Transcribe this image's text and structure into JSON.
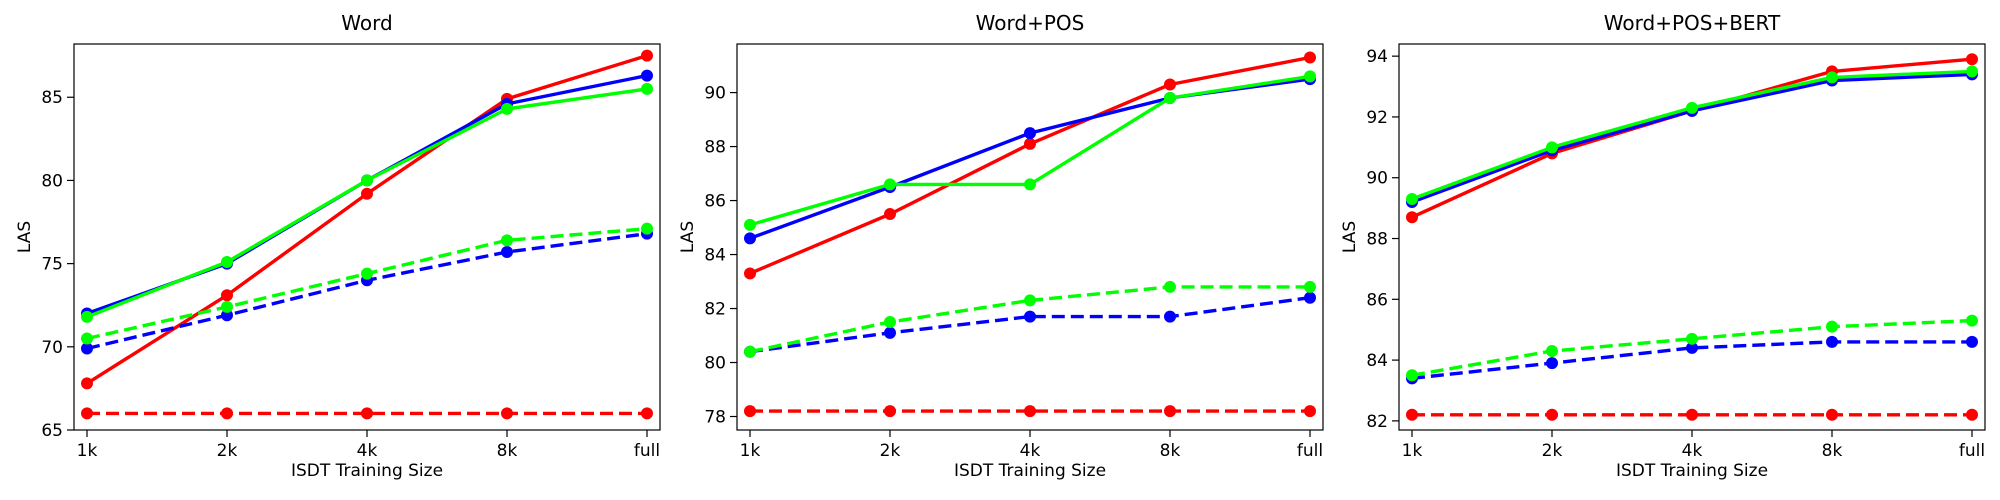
{
  "chart_data": [
    {
      "type": "line",
      "title": "Word",
      "xlabel": "ISDT Training Size",
      "ylabel": "LAS",
      "categories": [
        "1k",
        "2k",
        "4k",
        "8k",
        "full"
      ],
      "ylim": [
        65,
        88.2
      ],
      "yticks": [
        65,
        70,
        75,
        80,
        85
      ],
      "grid": false,
      "series": [
        {
          "color": "#ff0000",
          "style": "solid",
          "values": [
            67.8,
            73.1,
            79.2,
            84.9,
            87.5
          ]
        },
        {
          "color": "#0000ff",
          "style": "solid",
          "values": [
            72.0,
            75.0,
            80.0,
            84.6,
            86.3
          ]
        },
        {
          "color": "#00ff00",
          "style": "solid",
          "values": [
            71.8,
            75.1,
            80.0,
            84.3,
            85.5
          ]
        },
        {
          "color": "#ff0000",
          "style": "dashed",
          "values": [
            66.0,
            66.0,
            66.0,
            66.0,
            66.0
          ]
        },
        {
          "color": "#0000ff",
          "style": "dashed",
          "values": [
            69.9,
            71.9,
            74.0,
            75.7,
            76.8
          ]
        },
        {
          "color": "#00ff00",
          "style": "dashed",
          "values": [
            70.5,
            72.4,
            74.4,
            76.4,
            77.1
          ]
        }
      ]
    },
    {
      "type": "line",
      "title": "Word+POS",
      "xlabel": "ISDT Training Size",
      "ylabel": "LAS",
      "categories": [
        "1k",
        "2k",
        "4k",
        "8k",
        "full"
      ],
      "ylim": [
        77.5,
        91.8
      ],
      "yticks": [
        78,
        80,
        82,
        84,
        86,
        88,
        90
      ],
      "grid": false,
      "series": [
        {
          "color": "#ff0000",
          "style": "solid",
          "values": [
            83.3,
            85.5,
            88.1,
            90.3,
            91.3
          ]
        },
        {
          "color": "#0000ff",
          "style": "solid",
          "values": [
            84.6,
            86.5,
            88.5,
            89.8,
            90.5
          ]
        },
        {
          "color": "#00ff00",
          "style": "solid",
          "values": [
            85.1,
            86.6,
            86.6,
            89.8,
            90.6
          ]
        },
        {
          "color": "#ff0000",
          "style": "dashed",
          "values": [
            78.2,
            78.2,
            78.2,
            78.2,
            78.2
          ]
        },
        {
          "color": "#0000ff",
          "style": "dashed",
          "values": [
            80.4,
            81.1,
            81.7,
            81.7,
            82.4
          ]
        },
        {
          "color": "#00ff00",
          "style": "dashed",
          "values": [
            80.4,
            81.5,
            82.3,
            82.8,
            82.8
          ]
        }
      ]
    },
    {
      "type": "line",
      "title": "Word+POS+BERT",
      "xlabel": "ISDT Training Size",
      "ylabel": "LAS",
      "categories": [
        "1k",
        "2k",
        "4k",
        "8k",
        "full"
      ],
      "ylim": [
        81.7,
        94.4
      ],
      "yticks": [
        82,
        84,
        86,
        88,
        90,
        92,
        94
      ],
      "grid": false,
      "series": [
        {
          "color": "#ff0000",
          "style": "solid",
          "values": [
            88.7,
            90.8,
            92.2,
            93.5,
            93.9
          ]
        },
        {
          "color": "#0000ff",
          "style": "solid",
          "values": [
            89.2,
            90.9,
            92.2,
            93.2,
            93.4
          ]
        },
        {
          "color": "#00ff00",
          "style": "solid",
          "values": [
            89.3,
            91.0,
            92.3,
            93.3,
            93.5
          ]
        },
        {
          "color": "#ff0000",
          "style": "dashed",
          "values": [
            82.2,
            82.2,
            82.2,
            82.2,
            82.2
          ]
        },
        {
          "color": "#0000ff",
          "style": "dashed",
          "values": [
            83.4,
            83.9,
            84.4,
            84.6,
            84.6
          ]
        },
        {
          "color": "#00ff00",
          "style": "dashed",
          "values": [
            83.5,
            84.3,
            84.7,
            85.1,
            85.3
          ]
        }
      ]
    }
  ]
}
